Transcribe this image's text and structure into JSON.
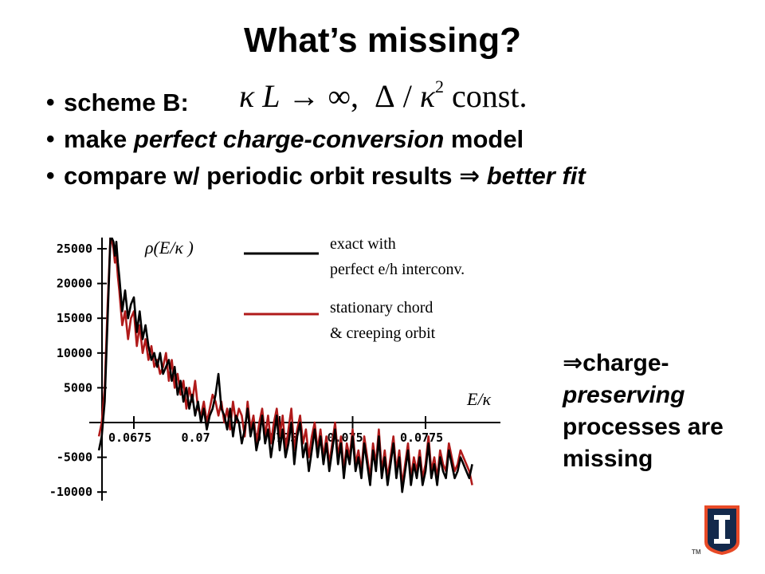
{
  "slide": {
    "title": "What’s missing?",
    "bullets": [
      {
        "label": "scheme B:"
      },
      {
        "pre": "make ",
        "em": "perfect charge-conversion",
        "post": " model"
      },
      {
        "pre": "compare w/ periodic orbit results ",
        "arrow": "⇒",
        "em": "better fit"
      }
    ],
    "formula": {
      "kappa": "κ",
      "L": "L",
      "arrow": "→",
      "inf": "∞,",
      "delta": "Δ",
      "slash": "/",
      "kappa2": "κ",
      "exp": "2",
      "const": "const."
    },
    "side_note": {
      "arrow": "⇒",
      "line1": "charge-",
      "line2": "preserving",
      "line3": "processes are",
      "line4": "missing"
    },
    "logo_tm": "TM"
  },
  "colors": {
    "exact": "#000000",
    "orbit": "#b01a1a",
    "logo_orange": "#e84a27",
    "logo_navy": "#13294b"
  },
  "chart_data": {
    "type": "line",
    "title": "ρ(E/κ )",
    "xlabel": "E/κ",
    "ylabel": "",
    "xlim": [
      0.0663,
      0.0799
    ],
    "ylim": [
      -11000,
      27000
    ],
    "x_ticks": [
      0.0675,
      0.07,
      0.0725,
      0.075,
      0.0775
    ],
    "x_tick_labels": [
      "0.0675",
      "0.07",
      "0.0725",
      "0.075",
      "0.0775"
    ],
    "y_ticks": [
      25000,
      20000,
      15000,
      10000,
      5000,
      -5000,
      -10000
    ],
    "y_tick_labels": [
      "25000",
      "20000",
      "15000",
      "10000",
      "5000",
      "-5000",
      "-10000"
    ],
    "legend_position": "top-right",
    "series": [
      {
        "name": "exact with perfect e/h interconv.",
        "legend_lines": [
          "exact with",
          "perfect e/h interconv."
        ],
        "color": "#000000",
        "x": [
          0.0663,
          0.0664,
          0.0665,
          0.0666,
          0.0667,
          0.0668,
          0.06685,
          0.0669,
          0.06695,
          0.067,
          0.0671,
          0.0672,
          0.0673,
          0.0674,
          0.0675,
          0.0676,
          0.0677,
          0.0678,
          0.0679,
          0.068,
          0.0681,
          0.0682,
          0.0683,
          0.0684,
          0.0685,
          0.0686,
          0.0687,
          0.0688,
          0.0689,
          0.069,
          0.0691,
          0.0692,
          0.0693,
          0.0694,
          0.0695,
          0.0696,
          0.0697,
          0.0698,
          0.0699,
          0.07,
          0.0701,
          0.0702,
          0.0703,
          0.0704,
          0.0705,
          0.0706,
          0.0707,
          0.0708,
          0.0709,
          0.071,
          0.0711,
          0.0712,
          0.0713,
          0.0714,
          0.0715,
          0.0716,
          0.0717,
          0.0718,
          0.0719,
          0.072,
          0.0721,
          0.0722,
          0.0723,
          0.0724,
          0.0725,
          0.0726,
          0.0727,
          0.0728,
          0.0729,
          0.073,
          0.0731,
          0.0732,
          0.0733,
          0.0734,
          0.0735,
          0.0736,
          0.0737,
          0.0738,
          0.0739,
          0.074,
          0.0741,
          0.0742,
          0.0743,
          0.0744,
          0.0745,
          0.0746,
          0.0747,
          0.0748,
          0.0749,
          0.075,
          0.0751,
          0.0752,
          0.0753,
          0.0754,
          0.0755,
          0.0756,
          0.0757,
          0.0758,
          0.0759,
          0.076,
          0.0761,
          0.0762,
          0.0763,
          0.0764,
          0.0765,
          0.0766,
          0.0767,
          0.0768,
          0.0769,
          0.077,
          0.0771,
          0.0772,
          0.0773,
          0.0774,
          0.0775,
          0.0776,
          0.0777,
          0.0778,
          0.0779,
          0.078,
          0.0781,
          0.0782,
          0.0783,
          0.0784,
          0.0785,
          0.0786,
          0.0787,
          0.0788,
          0.0789,
          0.079,
          0.0791
        ],
        "y": [
          -4000,
          -2000,
          3000,
          15000,
          27000,
          26000,
          24000,
          26000,
          23000,
          21000,
          16000,
          19000,
          15000,
          17000,
          18000,
          13000,
          16000,
          12000,
          14000,
          11000,
          9000,
          10000,
          8000,
          10000,
          7000,
          8000,
          9000,
          6000,
          8000,
          4000,
          6000,
          3000,
          5000,
          2000,
          4000,
          1000,
          3000,
          0,
          2000,
          -1000,
          1000,
          2000,
          4000,
          7000,
          2000,
          1000,
          -1000,
          2000,
          -2000,
          1000,
          0,
          -3000,
          -1000,
          2000,
          -2000,
          0,
          -4000,
          -2000,
          1000,
          -3000,
          -1000,
          -5000,
          -2000,
          1000,
          -4000,
          -1000,
          -5000,
          -3000,
          0,
          -6000,
          -2000,
          0,
          -5000,
          -3000,
          -7000,
          -4000,
          -1000,
          -5000,
          -2000,
          -6000,
          -3000,
          -7000,
          -4000,
          -1000,
          -6000,
          -3000,
          -8000,
          -4000,
          -6000,
          -2000,
          -7000,
          -5000,
          -8000,
          -3000,
          -6000,
          -9000,
          -4000,
          -7000,
          -2000,
          -8000,
          -5000,
          -9000,
          -6000,
          -3000,
          -8000,
          -5000,
          -10000,
          -7000,
          -4000,
          -9000,
          -6000,
          -8000,
          -5000,
          -9000,
          -7000,
          -3000,
          -8000,
          -6000,
          -9000,
          -5000,
          -7000,
          -8000,
          -4000,
          -6000,
          -8000,
          -7000,
          -5000,
          -6000,
          -7000,
          -8000,
          -6000
        ],
        "note": "values estimated"
      },
      {
        "name": "stationary chord & creeping orbit",
        "legend_lines": [
          "stationary chord",
          "& creeping orbit"
        ],
        "color": "#b01a1a",
        "x": [
          0.0663,
          0.0664,
          0.0665,
          0.0666,
          0.0667,
          0.0668,
          0.06685,
          0.0669,
          0.06695,
          0.067,
          0.0671,
          0.0672,
          0.0673,
          0.0674,
          0.0675,
          0.0676,
          0.0677,
          0.0678,
          0.0679,
          0.068,
          0.0681,
          0.0682,
          0.0683,
          0.0684,
          0.0685,
          0.0686,
          0.0687,
          0.0688,
          0.0689,
          0.069,
          0.0691,
          0.0692,
          0.0693,
          0.0694,
          0.0695,
          0.0696,
          0.0697,
          0.0698,
          0.0699,
          0.07,
          0.0701,
          0.0702,
          0.0703,
          0.0704,
          0.0705,
          0.0706,
          0.0707,
          0.0708,
          0.0709,
          0.071,
          0.0711,
          0.0712,
          0.0713,
          0.0714,
          0.0715,
          0.0716,
          0.0717,
          0.0718,
          0.0719,
          0.072,
          0.0721,
          0.0722,
          0.0723,
          0.0724,
          0.0725,
          0.0726,
          0.0727,
          0.0728,
          0.0729,
          0.073,
          0.0731,
          0.0732,
          0.0733,
          0.0734,
          0.0735,
          0.0736,
          0.0737,
          0.0738,
          0.0739,
          0.074,
          0.0741,
          0.0742,
          0.0743,
          0.0744,
          0.0745,
          0.0746,
          0.0747,
          0.0748,
          0.0749,
          0.075,
          0.0751,
          0.0752,
          0.0753,
          0.0754,
          0.0755,
          0.0756,
          0.0757,
          0.0758,
          0.0759,
          0.076,
          0.0761,
          0.0762,
          0.0763,
          0.0764,
          0.0765,
          0.0766,
          0.0767,
          0.0768,
          0.0769,
          0.077,
          0.0771,
          0.0772,
          0.0773,
          0.0774,
          0.0775,
          0.0776,
          0.0777,
          0.0778,
          0.0779,
          0.078,
          0.0781,
          0.0782,
          0.0783,
          0.0784,
          0.0785,
          0.0786,
          0.0787,
          0.0788,
          0.0789,
          0.079,
          0.0791
        ],
        "y": [
          -2000,
          0,
          5000,
          17000,
          27000,
          25000,
          23000,
          24000,
          21000,
          19000,
          14000,
          16000,
          12000,
          15000,
          16000,
          11000,
          14000,
          10000,
          12000,
          9000,
          11000,
          8000,
          9000,
          7000,
          8000,
          10000,
          6000,
          9000,
          5000,
          7000,
          4000,
          6000,
          2000,
          5000,
          3000,
          6000,
          2000,
          1000,
          3000,
          0,
          2000,
          4000,
          3000,
          1000,
          3000,
          0,
          2000,
          -1000,
          3000,
          0,
          2000,
          1000,
          -2000,
          3000,
          -1000,
          1000,
          -3000,
          0,
          2000,
          -2000,
          1000,
          -3000,
          0,
          2000,
          -2000,
          1000,
          -4000,
          -1000,
          2000,
          -4000,
          -1000,
          1000,
          -3000,
          -1000,
          -5000,
          -2000,
          0,
          -4000,
          -1000,
          -5000,
          -2000,
          -6000,
          -3000,
          0,
          -5000,
          -2000,
          -7000,
          -3000,
          -5000,
          -1000,
          -6000,
          -4000,
          -7000,
          -2000,
          -5000,
          -8000,
          -3000,
          -6000,
          -1000,
          -7000,
          -4000,
          -8000,
          -5000,
          -2000,
          -7000,
          -4000,
          -9000,
          -6000,
          -3000,
          -8000,
          -5000,
          -7000,
          -4000,
          -8000,
          -6000,
          -2000,
          -7000,
          -5000,
          -8000,
          -4000,
          -6000,
          -7000,
          -3000,
          -5000,
          -7000,
          -6000,
          -4000,
          -5000,
          -6000,
          -7000,
          -9000
        ],
        "note": "values estimated"
      }
    ]
  }
}
